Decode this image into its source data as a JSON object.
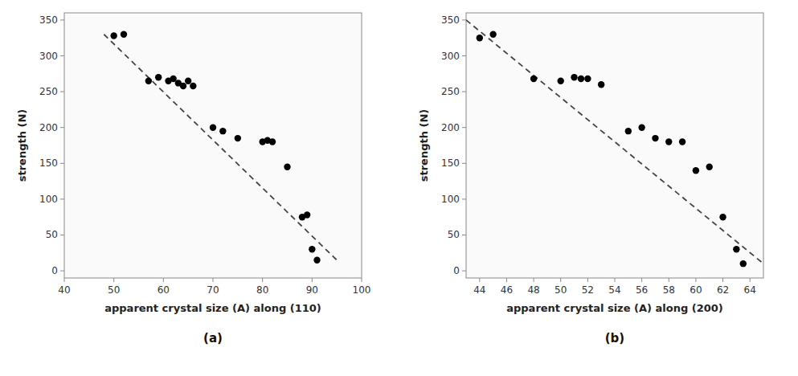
{
  "chart_data": [
    {
      "type": "scatter",
      "title": "(a)",
      "xlabel": "apparent crystal size (A) along (110)",
      "ylabel": "strength (N)",
      "xlim": [
        40,
        100
      ],
      "ylim": [
        -10,
        360
      ],
      "xticks": [
        40,
        50,
        60,
        70,
        80,
        90,
        100
      ],
      "yticks": [
        0,
        50,
        100,
        150,
        200,
        250,
        300,
        350
      ],
      "grid": false,
      "series": [
        {
          "type": "scatter",
          "color": "#000000",
          "x": [
            50,
            52,
            57,
            59,
            61,
            62,
            63,
            64,
            65,
            66,
            70,
            72,
            75,
            80,
            81,
            82,
            85,
            88,
            89,
            90,
            91
          ],
          "values": [
            328,
            330,
            265,
            270,
            265,
            268,
            262,
            258,
            265,
            258,
            200,
            195,
            185,
            180,
            182,
            180,
            145,
            75,
            78,
            30,
            15
          ]
        },
        {
          "type": "line",
          "color": "#444444",
          "line_style": "dashed",
          "x": [
            48,
            95
          ],
          "values": [
            330,
            15
          ]
        }
      ]
    },
    {
      "type": "scatter",
      "title": "(b)",
      "xlabel": "apparent crystal size (A) along (200)",
      "ylabel": "strength (N)",
      "xlim": [
        43,
        65
      ],
      "ylim": [
        -10,
        360
      ],
      "xticks": [
        44,
        46,
        48,
        50,
        52,
        54,
        56,
        58,
        60,
        62,
        64
      ],
      "yticks": [
        0,
        50,
        100,
        150,
        200,
        250,
        300,
        350
      ],
      "grid": false,
      "series": [
        {
          "type": "scatter",
          "color": "#000000",
          "x": [
            44,
            45,
            48,
            50,
            51,
            51.5,
            52,
            53,
            55,
            56,
            57,
            58,
            59,
            60,
            61,
            62,
            63,
            63.5
          ],
          "values": [
            325,
            330,
            268,
            265,
            270,
            268,
            268,
            260,
            195,
            200,
            185,
            180,
            180,
            140,
            145,
            75,
            30,
            10
          ]
        },
        {
          "type": "line",
          "color": "#444444",
          "line_style": "dashed",
          "x": [
            43,
            65
          ],
          "values": [
            350,
            10
          ]
        }
      ]
    }
  ]
}
